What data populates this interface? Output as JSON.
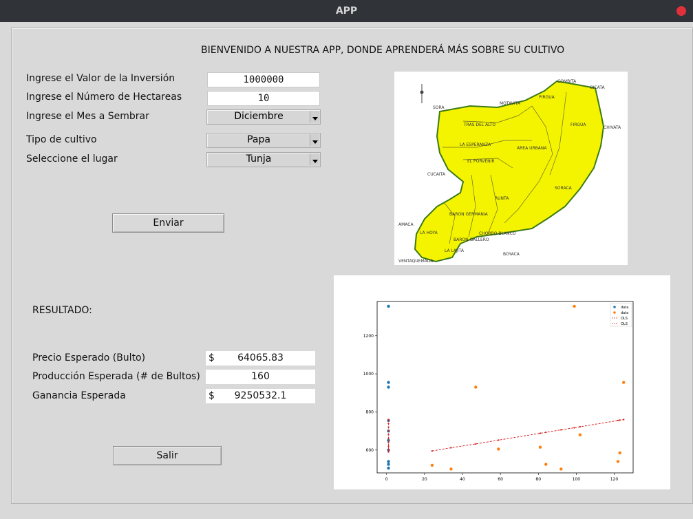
{
  "window": {
    "title": "APP"
  },
  "heading": "BIENVENIDO A NUESTRA APP, DONDE APRENDERÁ MÁS SOBRE SU CULTIVO",
  "form": {
    "investment_label": "Ingrese el Valor de la Inversión",
    "investment_value": "1000000",
    "hectares_label": "Ingrese el Número de Hectareas",
    "hectares_value": "10",
    "month_label": "Ingrese el Mes a Sembrar",
    "month_value": "Diciembre",
    "crop_label": "Tipo de cultivo",
    "crop_value": "Papa",
    "place_label": "Seleccione el lugar",
    "place_value": "Tunja",
    "submit_label": "Enviar"
  },
  "results": {
    "title": "RESULTADO:",
    "price_label": "Precio Esperado (Bulto)",
    "price_currency": "$",
    "price_value": "64065.83",
    "production_label": "Producción Esperada (# de Bultos)",
    "production_value": "160",
    "profit_label": "Ganancia Esperada",
    "profit_currency": "$",
    "profit_value": "9250532.1",
    "exit_label": "Salir"
  },
  "map": {
    "places": [
      "COMBITA",
      "OICATA",
      "SORA",
      "MOTAVITA",
      "CHIVATA",
      "TRAS DEL ALTO",
      "LA ESPERANZA",
      "AREA URBANA",
      "EL PORVENIR",
      "CUCAITA",
      "SORACA",
      "RUNTA",
      "BARON GERMANIA",
      "AMACA",
      "LA HOYA",
      "BARON GALLERO",
      "CHORRO BLANCO",
      "LA LAJITA",
      "BOYACA",
      "VENTAQUEMADA",
      "FIRGUA",
      "PIRGUA"
    ]
  },
  "chart_data": {
    "type": "scatter",
    "title": "",
    "xlabel": "",
    "ylabel": "",
    "xlim": [
      -5,
      130
    ],
    "ylim": [
      480,
      1380
    ],
    "xticks": [
      0,
      20,
      40,
      60,
      80,
      100,
      120
    ],
    "yticks": [
      600,
      800,
      1000,
      1200
    ],
    "legend_position": "top-right",
    "series": [
      {
        "name": "data",
        "kind": "points",
        "color": "#1f77b4",
        "x": [
          1,
          1,
          1,
          1,
          1,
          1,
          1,
          1,
          1,
          1
        ],
        "y": [
          1355,
          955,
          930,
          755,
          700,
          650,
          600,
          540,
          525,
          505
        ]
      },
      {
        "name": "data",
        "kind": "points",
        "color": "#ff7f0e",
        "x": [
          24,
          34,
          47,
          59,
          81,
          84,
          92,
          99,
          102,
          122,
          123,
          125
        ],
        "y": [
          520,
          500,
          930,
          605,
          615,
          525,
          500,
          1355,
          680,
          540,
          585,
          955
        ]
      },
      {
        "name": "OLS",
        "kind": "line",
        "color": "#d62728",
        "x": [
          1,
          1,
          1,
          1,
          1,
          1,
          1,
          1,
          1,
          1
        ],
        "y": [
          760,
          740,
          720,
          700,
          680,
          660,
          640,
          620,
          600,
          590
        ]
      },
      {
        "name": "OLS",
        "kind": "line",
        "color": "#d62728",
        "x": [
          24,
          34,
          47,
          59,
          81,
          84,
          92,
          99,
          102,
          122,
          123,
          125
        ],
        "y": [
          595,
          612,
          632,
          652,
          688,
          693,
          706,
          717,
          722,
          755,
          757,
          760
        ]
      }
    ]
  }
}
